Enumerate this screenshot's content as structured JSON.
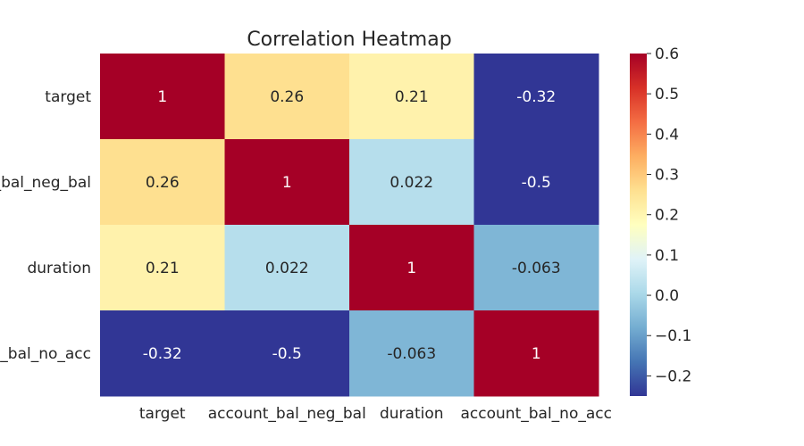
{
  "chart_data": {
    "type": "heatmap",
    "title": "Correlation Heatmap",
    "xlabel": "",
    "ylabel": "",
    "x_categories": [
      "target",
      "account_bal_neg_bal",
      "duration",
      "account_bal_no_acc"
    ],
    "y_categories": [
      "target",
      "account_bal_neg_bal",
      "duration",
      "account_bal_no_acc"
    ],
    "values": [
      [
        1,
        0.26,
        0.21,
        -0.32
      ],
      [
        0.26,
        1,
        0.022,
        -0.5
      ],
      [
        0.21,
        0.022,
        1,
        -0.063
      ],
      [
        -0.32,
        -0.5,
        -0.063,
        1
      ]
    ],
    "annotations": [
      [
        "1",
        "0.26",
        "0.21",
        "-0.32"
      ],
      [
        "0.26",
        "1",
        "0.022",
        "-0.5"
      ],
      [
        "0.21",
        "0.022",
        "1",
        "-0.063"
      ],
      [
        "-0.32",
        "-0.5",
        "-0.063",
        "1"
      ]
    ],
    "colormap": "RdYlBu_r",
    "color_range": [
      -0.25,
      0.6
    ],
    "colorbar_ticks": [
      0.6,
      0.5,
      0.4,
      0.3,
      0.2,
      0.1,
      0.0,
      -0.1,
      -0.2
    ],
    "colorbar_tick_labels": [
      "0.6",
      "0.5",
      "0.4",
      "0.3",
      "0.2",
      "0.1",
      "0.0",
      "−0.1",
      "−0.2"
    ],
    "grid": false
  }
}
